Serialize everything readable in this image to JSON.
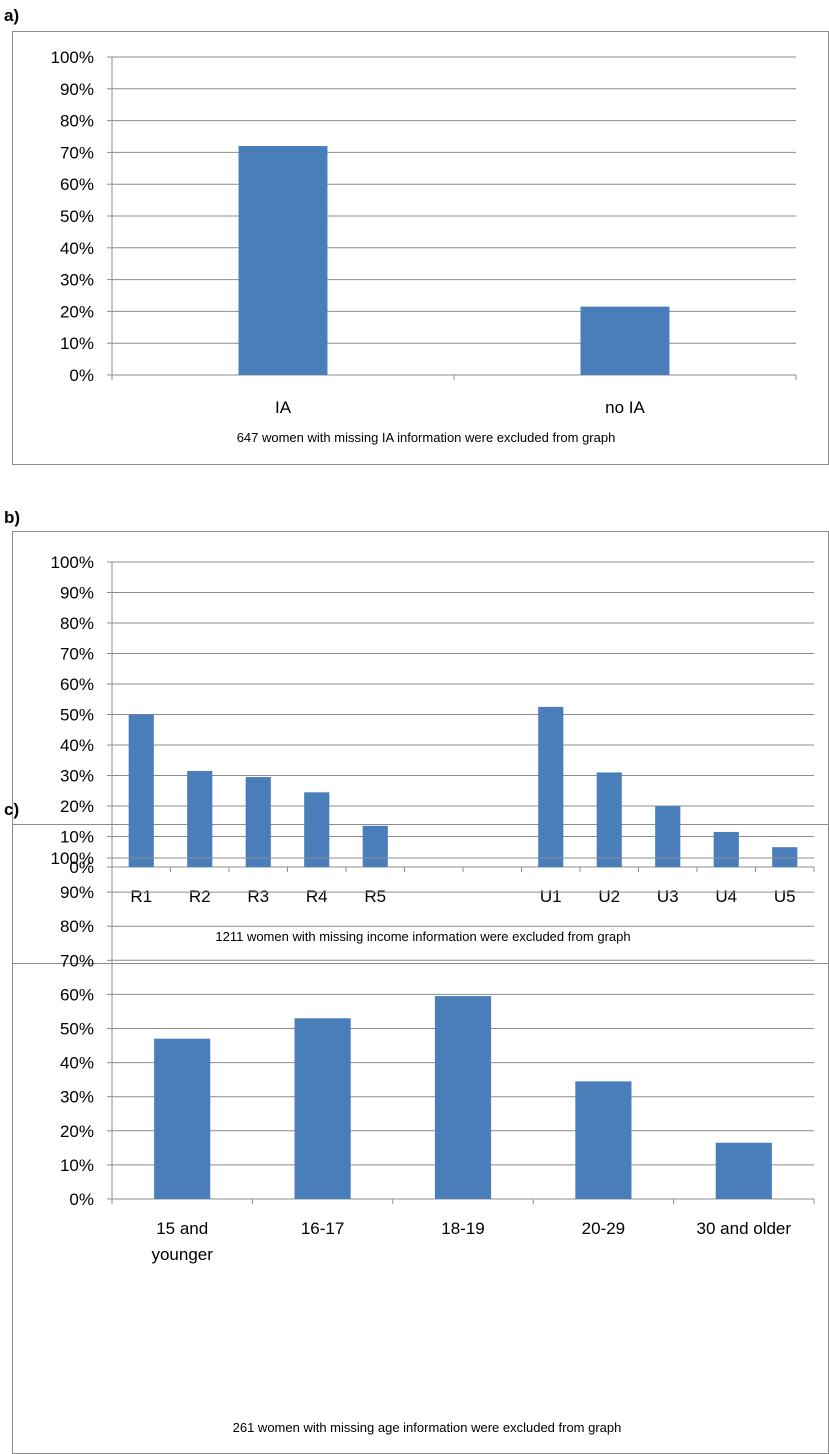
{
  "chart_data": [
    {
      "type": "bar",
      "panel": "a)",
      "categories": [
        "IA",
        "no IA"
      ],
      "values": [
        72,
        21.5
      ],
      "ylim": [
        0,
        100
      ],
      "yticks": [
        "0%",
        "10%",
        "20%",
        "30%",
        "40%",
        "50%",
        "60%",
        "70%",
        "80%",
        "90%",
        "100%"
      ],
      "grid": true,
      "bar_color": "#4a7ebb",
      "note": "647 women with missing IA information were excluded from graph"
    },
    {
      "type": "bar",
      "panel": "b)",
      "categories": [
        "R1",
        "R2",
        "R3",
        "R4",
        "R5",
        "",
        "",
        "U1",
        "U2",
        "U3",
        "U4",
        "U5"
      ],
      "values": [
        50,
        31.5,
        29.5,
        24.5,
        13.5,
        null,
        null,
        52.5,
        31,
        20,
        11.5,
        6.5
      ],
      "ylim": [
        0,
        100
      ],
      "yticks": [
        "0%",
        "10%",
        "20%",
        "30%",
        "40%",
        "50%",
        "60%",
        "70%",
        "80%",
        "90%",
        "100%"
      ],
      "grid": true,
      "bar_color": "#4a7ebb",
      "note": "1211 women with missing income information were excluded from graph"
    },
    {
      "type": "bar",
      "panel": "c)",
      "categories": [
        [
          "15 and",
          "younger"
        ],
        [
          "16-17"
        ],
        [
          "18-19"
        ],
        [
          "20-29"
        ],
        [
          "30 and older"
        ]
      ],
      "values": [
        47,
        53,
        59.5,
        34.5,
        16.5
      ],
      "ylim": [
        0,
        100
      ],
      "yticks": [
        "0%",
        "10%",
        "20%",
        "30%",
        "40%",
        "50%",
        "60%",
        "70%",
        "80%",
        "90%",
        "100%"
      ],
      "grid": true,
      "bar_color": "#4a7ebb",
      "note": "261 women with missing age information were excluded  from graph"
    }
  ]
}
